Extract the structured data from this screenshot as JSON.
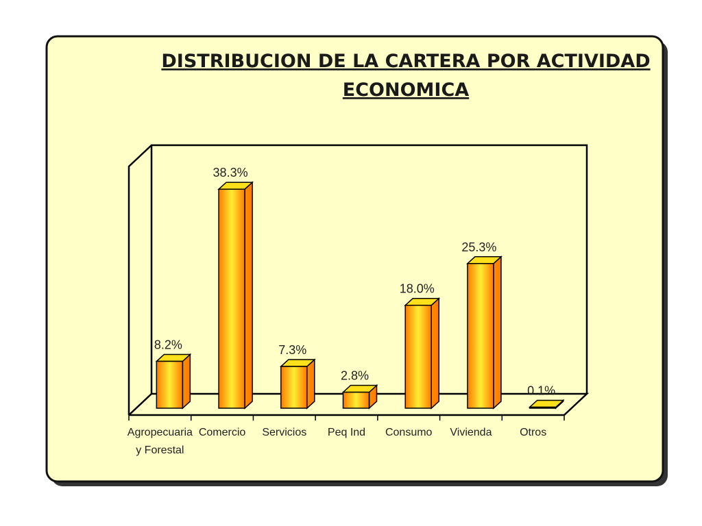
{
  "chart_data": {
    "type": "bar",
    "title_lines": [
      "DISTRIBUCION DE LA CARTERA POR ACTIVIDAD",
      "ECONOMICA"
    ],
    "categories": [
      [
        "Agropecuaria",
        "y Forestal"
      ],
      [
        "Comercio"
      ],
      [
        "Servicios"
      ],
      [
        "Peq Ind"
      ],
      [
        "Consumo"
      ],
      [
        "Vivienda"
      ],
      [
        "Otros"
      ]
    ],
    "values": [
      8.2,
      38.3,
      7.3,
      2.8,
      18.0,
      25.3,
      0.1
    ],
    "value_labels": [
      "8.2%",
      "38.3%",
      "7.3%",
      "2.8%",
      "18.0%",
      "25.3%",
      "0.1%"
    ],
    "unit": "%",
    "ylim": [
      0,
      40
    ],
    "grid": false,
    "legend": "none",
    "three_d": true
  },
  "colors": {
    "panel_background": "#ffffc8",
    "panel_border": "#111111",
    "panel_shadow": "#333333",
    "bar_center": "#ffee33",
    "bar_edge": "#ff7a00",
    "bar_side": "#ff8c00",
    "bar_top": "#ffe01a"
  }
}
